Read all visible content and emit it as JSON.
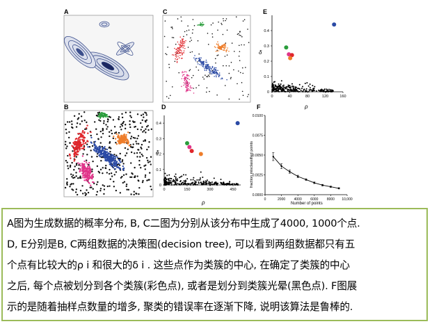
{
  "panels": {
    "A": "A",
    "B": "B",
    "C": "C",
    "D": "D",
    "E": "E",
    "F": "F"
  },
  "colors": {
    "red": "#e0262b",
    "blue": "#2b4aa5",
    "green": "#2a9d3c",
    "orange": "#ee7d2a",
    "magenta": "#e0358a",
    "contour": "#3c4f8c",
    "caption_border": "#9bbb59"
  },
  "chart_data": [
    {
      "panel": "E",
      "type": "scatter",
      "xlabel": "ρ",
      "ylabel": "δ",
      "xlim": [
        0,
        160
      ],
      "ylim": [
        0,
        0.5
      ],
      "xticks": [
        "0",
        "40",
        "80",
        "120",
        "160"
      ],
      "yticks": [
        "0",
        "0.1",
        "0.2",
        "0.3",
        "0.4"
      ],
      "centers": [
        {
          "x": 140,
          "y": 0.44,
          "color": "#2b4aa5"
        },
        {
          "x": 32,
          "y": 0.29,
          "color": "#2a9d3c"
        },
        {
          "x": 38,
          "y": 0.245,
          "color": "#e0358a"
        },
        {
          "x": 45,
          "y": 0.24,
          "color": "#e0262b"
        },
        {
          "x": 41,
          "y": 0.22,
          "color": "#ee7d2a"
        }
      ]
    },
    {
      "panel": "D",
      "type": "scatter",
      "xlabel": "ρ",
      "ylabel": "δ",
      "xlim": [
        0,
        500
      ],
      "ylim": [
        0,
        0.45
      ],
      "xticks": [
        "0",
        "150",
        "300",
        "450"
      ],
      "yticks": [
        "0",
        "0.1",
        "0.2",
        "0.3",
        "0.4"
      ],
      "centers": [
        {
          "x": 480,
          "y": 0.4,
          "color": "#2b4aa5"
        },
        {
          "x": 150,
          "y": 0.27,
          "color": "#2a9d3c"
        },
        {
          "x": 165,
          "y": 0.245,
          "color": "#e0358a"
        },
        {
          "x": 180,
          "y": 0.22,
          "color": "#e0262b"
        },
        {
          "x": 240,
          "y": 0.2,
          "color": "#ee7d2a"
        }
      ]
    },
    {
      "panel": "F",
      "type": "line",
      "xlabel": "Number of points",
      "ylabel": "fraction misclassified points",
      "xlim": [
        0,
        10000
      ],
      "ylim": [
        0,
        0.01
      ],
      "xticks": [
        "0",
        "2000",
        "4000",
        "6000",
        "8000",
        "10,000"
      ],
      "yticks": [
        "0.0000",
        "0.0025",
        "0.0050",
        "0.0075",
        "0.0100"
      ],
      "x": [
        1000,
        2000,
        3000,
        4000,
        5000,
        6000,
        7000,
        8000,
        9000
      ],
      "y": [
        0.0048,
        0.0036,
        0.0029,
        0.0023,
        0.0019,
        0.0015,
        0.0012,
        0.001,
        0.0008
      ],
      "error": [
        0.0005,
        0.0003,
        0.0002,
        0.00015,
        0.0001,
        0.0001,
        0.0001,
        8e-05,
        8e-05
      ]
    }
  ],
  "caption": {
    "lines": [
      "A图为生成数据的概率分布, B, C二图为分别从该分布中生成了4000, 1000个点.",
      "D, E分别是B, C两组数据的决策图(decision tree), 可以看到两组数据都只有五",
      "个点有比较大的ρ i 和很大的δ i . 这些点作为类簇的中心, 在确定了类簇的中心",
      "之后, 每个点被划分到各个类簇(彩色点), 或者是划分到类簇光晕(黑色点). F图展",
      "示的是随着抽样点数量的增多, 聚类的错误率在逐渐下降, 说明该算法是鲁棒的."
    ]
  }
}
